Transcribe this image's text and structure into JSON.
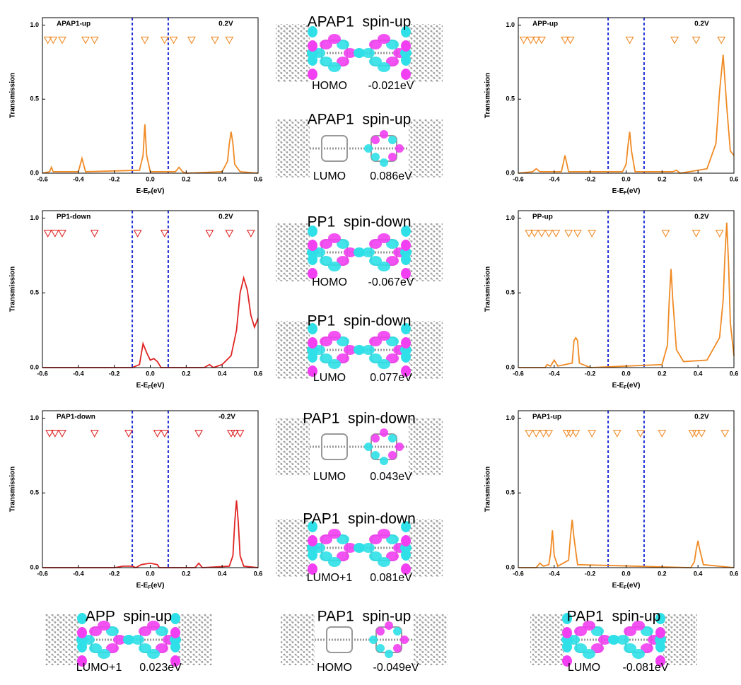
{
  "chart_data": [
    {
      "type": "line",
      "title": "APAP1-up",
      "annotation": "0.2V",
      "xlabel": [
        "E-E",
        "F",
        "(eV)"
      ],
      "ylabel": "Transmission",
      "xlim": [
        -0.6,
        0.6
      ],
      "ylim": [
        0,
        1.05
      ],
      "xticks": [
        -0.6,
        -0.4,
        -0.2,
        {
          "value": 0,
          "label": "0.0"
        },
        0.2,
        0.4,
        0.6
      ],
      "yticks": [
        {
          "value": 0,
          "label": "0.0"
        },
        0.5,
        {
          "value": 1,
          "label": "1.0"
        }
      ],
      "vlines": [
        -0.1,
        0.1
      ],
      "vline_color": "#1f2fd8",
      "series": [
        {
          "color": "#f08a24",
          "x": [
            -0.6,
            -0.56,
            -0.55,
            -0.54,
            -0.4,
            -0.38,
            -0.36,
            -0.06,
            -0.04,
            -0.03,
            -0.02,
            0,
            0.14,
            0.16,
            0.18,
            0.2,
            0.4,
            0.43,
            0.44,
            0.45,
            0.46,
            0.47,
            0.5,
            0.6
          ],
          "values": [
            0,
            0.01,
            0.04,
            0.01,
            0.01,
            0.1,
            0.01,
            0.02,
            0.12,
            0.33,
            0.12,
            0.01,
            0.01,
            0.04,
            0.01,
            0,
            0.01,
            0.08,
            0.2,
            0.28,
            0.2,
            0.06,
            0.01,
            0
          ]
        }
      ],
      "markers": {
        "color": "#f08a24",
        "x": [
          -0.57,
          -0.54,
          -0.49,
          -0.36,
          -0.31,
          -0.03,
          0.08,
          0.13,
          0.23,
          0.36,
          0.44
        ],
        "values": [
          0.9,
          0.9,
          0.9,
          0.9,
          0.9,
          0.9,
          0.9,
          0.9,
          0.9,
          0.9,
          0.9
        ]
      }
    },
    {
      "type": "line",
      "title": "APP-up",
      "annotation": "0.2V",
      "xlabel": [
        "E-E",
        "F",
        "(eV)"
      ],
      "ylabel": "Transmission",
      "xlim": [
        -0.6,
        0.6
      ],
      "ylim": [
        0,
        1.05
      ],
      "xticks": [
        -0.6,
        -0.4,
        -0.2,
        {
          "value": 0,
          "label": "0.0"
        },
        0.2,
        0.4,
        0.6
      ],
      "yticks": [
        {
          "value": 0,
          "label": "0.0"
        },
        0.5,
        {
          "value": 1,
          "label": "1.0"
        }
      ],
      "vlines": [
        -0.1,
        0.1
      ],
      "vline_color": "#1f2fd8",
      "series": [
        {
          "color": "#f08a24",
          "x": [
            -0.6,
            -0.52,
            -0.5,
            -0.48,
            -0.36,
            -0.34,
            -0.32,
            -0.02,
            0,
            0.01,
            0.02,
            0.03,
            0.05,
            0.26,
            0.28,
            0.3,
            0.45,
            0.5,
            0.52,
            0.54,
            0.56,
            0.58,
            0.6
          ],
          "values": [
            0,
            0.01,
            0.03,
            0.01,
            0.01,
            0.12,
            0.01,
            0.01,
            0.06,
            0.18,
            0.28,
            0.15,
            0.01,
            0.01,
            0.02,
            0,
            0.03,
            0.2,
            0.55,
            0.8,
            0.45,
            0.15,
            0.12
          ]
        }
      ],
      "markers": {
        "color": "#f08a24",
        "x": [
          -0.57,
          -0.53,
          -0.5,
          -0.47,
          -0.34,
          -0.31,
          0.02,
          0.27,
          0.39,
          0.53
        ],
        "values": [
          0.9,
          0.9,
          0.9,
          0.9,
          0.9,
          0.9,
          0.9,
          0.9,
          0.9,
          0.9
        ]
      }
    },
    {
      "type": "line",
      "title": "PP1-down",
      "annotation": "0.2V",
      "xlabel": [
        "E-E",
        "F",
        "(eV)"
      ],
      "ylabel": "Transmission",
      "xlim": [
        -0.6,
        0.6
      ],
      "ylim": [
        0,
        1.05
      ],
      "xticks": [
        -0.6,
        -0.4,
        -0.2,
        {
          "value": 0,
          "label": "0.0"
        },
        0.2,
        0.4,
        0.6
      ],
      "yticks": [
        {
          "value": 0,
          "label": "0.0"
        },
        0.5,
        {
          "value": 1,
          "label": "1.0"
        }
      ],
      "vlines": [
        -0.1,
        0.1
      ],
      "vline_color": "#1f2fd8",
      "series": [
        {
          "color": "#e02424",
          "x": [
            -0.6,
            -0.1,
            -0.06,
            -0.04,
            -0.02,
            0,
            0.02,
            0.04,
            0.06,
            0.3,
            0.33,
            0.35,
            0.4,
            0.45,
            0.48,
            0.5,
            0.52,
            0.54,
            0.56,
            0.58,
            0.6
          ],
          "values": [
            0,
            0,
            0.02,
            0.16,
            0.1,
            0.05,
            0.06,
            0.04,
            0,
            0,
            0.02,
            0,
            0.02,
            0.08,
            0.25,
            0.5,
            0.6,
            0.52,
            0.35,
            0.27,
            0.33
          ]
        }
      ],
      "markers": {
        "color": "#e02424",
        "x": [
          -0.57,
          -0.53,
          -0.49,
          -0.31,
          -0.07,
          0.08,
          0.33,
          0.44,
          0.56
        ],
        "values": [
          0.9,
          0.9,
          0.9,
          0.9,
          0.9,
          0.9,
          0.9,
          0.9,
          0.9
        ]
      }
    },
    {
      "type": "line",
      "title": "PP-up",
      "annotation": "0.2V",
      "xlabel": [
        "E-E",
        "F",
        "(eV)"
      ],
      "ylabel": "Transmission",
      "xlim": [
        -0.6,
        0.6
      ],
      "ylim": [
        0,
        1.05
      ],
      "xticks": [
        -0.6,
        -0.4,
        -0.2,
        {
          "value": 0,
          "label": "0.0"
        },
        0.2,
        0.4,
        0.6
      ],
      "yticks": [
        {
          "value": 0,
          "label": "0.0"
        },
        0.5,
        {
          "value": 1,
          "label": "1.0"
        }
      ],
      "vlines": [
        -0.1,
        0.1
      ],
      "vline_color": "#1f2fd8",
      "series": [
        {
          "color": "#f08a24",
          "x": [
            -0.6,
            -0.45,
            -0.44,
            -0.42,
            -0.4,
            -0.38,
            -0.3,
            -0.29,
            -0.28,
            -0.27,
            -0.26,
            -0.2,
            0.2,
            0.23,
            0.24,
            0.25,
            0.26,
            0.28,
            0.32,
            0.45,
            0.52,
            0.54,
            0.55,
            0.56,
            0.57,
            0.58,
            0.6
          ],
          "values": [
            0,
            0,
            0.02,
            0.01,
            0.05,
            0.01,
            0.03,
            0.18,
            0.2,
            0.18,
            0.03,
            0,
            0.02,
            0.15,
            0.45,
            0.66,
            0.45,
            0.12,
            0.04,
            0.05,
            0.2,
            0.45,
            0.75,
            0.97,
            0.7,
            0.3,
            0.08
          ]
        }
      ],
      "markers": {
        "color": "#f08a24",
        "x": [
          -0.54,
          -0.51,
          -0.47,
          -0.43,
          -0.39,
          -0.32,
          -0.27,
          -0.19,
          0.22,
          0.39,
          0.52
        ],
        "values": [
          0.9,
          0.9,
          0.9,
          0.9,
          0.9,
          0.9,
          0.9,
          0.9,
          0.9,
          0.9,
          0.9
        ]
      }
    },
    {
      "type": "line",
      "title": "PAP1-down",
      "annotation": "-0.2V",
      "xlabel": [
        "E-E",
        "F",
        "(eV)"
      ],
      "ylabel": "Transmission",
      "xlim": [
        -0.6,
        0.6
      ],
      "ylim": [
        0,
        1.05
      ],
      "xticks": [
        -0.6,
        -0.4,
        -0.2,
        {
          "value": 0,
          "label": "0.0"
        },
        0.2,
        0.4,
        0.6
      ],
      "yticks": [
        {
          "value": 0,
          "label": "0.0"
        },
        0.5,
        {
          "value": 1,
          "label": "1.0"
        }
      ],
      "vlines": [
        -0.1,
        0.1
      ],
      "vline_color": "#1f2fd8",
      "series": [
        {
          "color": "#e02424",
          "x": [
            -0.6,
            -0.2,
            -0.15,
            -0.1,
            -0.08,
            -0.05,
            0,
            0.04,
            0.05,
            0.25,
            0.27,
            0.29,
            0.44,
            0.46,
            0.47,
            0.48,
            0.49,
            0.5,
            0.52,
            0.6
          ],
          "values": [
            0,
            0,
            0.01,
            0.01,
            0,
            0.02,
            0.03,
            0.02,
            0,
            0,
            0.03,
            0,
            0.01,
            0.08,
            0.3,
            0.45,
            0.3,
            0.08,
            0.01,
            0
          ]
        }
      ],
      "markers": {
        "color": "#e02424",
        "x": [
          -0.56,
          -0.53,
          -0.49,
          -0.31,
          -0.12,
          0.04,
          0.08,
          0.27,
          0.45,
          0.47,
          0.5
        ],
        "values": [
          0.9,
          0.9,
          0.9,
          0.9,
          0.9,
          0.9,
          0.9,
          0.9,
          0.9,
          0.9,
          0.9
        ]
      }
    },
    {
      "type": "line",
      "title": "PAP1-up",
      "annotation": "0.2V",
      "xlabel": [
        "E-E",
        "F",
        "(eV)"
      ],
      "ylabel": "Transmission",
      "xlim": [
        -0.6,
        0.6
      ],
      "ylim": [
        0,
        1.05
      ],
      "xticks": [
        -0.6,
        -0.4,
        -0.2,
        {
          "value": 0,
          "label": "0.0"
        },
        0.2,
        0.4,
        0.6
      ],
      "yticks": [
        {
          "value": 0,
          "label": "0.0"
        },
        0.5,
        {
          "value": 1,
          "label": "1.0"
        }
      ],
      "vlines": [
        -0.1,
        0.1
      ],
      "vline_color": "#1f2fd8",
      "series": [
        {
          "color": "#f08a24",
          "x": [
            -0.6,
            -0.5,
            -0.48,
            -0.46,
            -0.43,
            -0.42,
            -0.41,
            -0.4,
            -0.38,
            -0.32,
            -0.31,
            -0.3,
            -0.29,
            -0.27,
            0.36,
            0.38,
            0.39,
            0.4,
            0.41,
            0.43,
            0.6
          ],
          "values": [
            0,
            0,
            0.03,
            0.01,
            0.02,
            0.1,
            0.25,
            0.08,
            0.01,
            0.05,
            0.2,
            0.32,
            0.2,
            0.02,
            0,
            0.04,
            0.12,
            0.18,
            0.12,
            0.02,
            0
          ]
        }
      ],
      "markers": {
        "color": "#f08a24",
        "x": [
          -0.54,
          -0.5,
          -0.46,
          -0.43,
          -0.33,
          -0.31,
          -0.28,
          -0.19,
          -0.05,
          0.08,
          0.2,
          0.37,
          0.39,
          0.42,
          0.55
        ],
        "values": [
          0.9,
          0.9,
          0.9,
          0.9,
          0.9,
          0.9,
          0.9,
          0.9,
          0.9,
          0.9,
          0.9,
          0.9,
          0.9,
          0.9,
          0.9
        ]
      }
    }
  ],
  "orbitals": [
    {
      "title": "APAP1  spin-up",
      "state": "HOMO",
      "energy": "-0.021eV"
    },
    {
      "title": "APAP1  spin-up",
      "state": "LUMO",
      "energy": "0.086eV"
    },
    {
      "title": "PP1  spin-down",
      "state": "HOMO",
      "energy": "-0.067eV"
    },
    {
      "title": "PP1  spin-down",
      "state": "LUMO",
      "energy": "0.077eV"
    },
    {
      "title": "PAP1  spin-down",
      "state": "LUMO",
      "energy": "0.043eV"
    },
    {
      "title": "PAP1  spin-down",
      "state": "LUMO+1",
      "energy": "0.081eV"
    },
    {
      "title": "APP  spin-up",
      "state": "LUMO+1",
      "energy": "0.023eV"
    },
    {
      "title": "PAP1  spin-up",
      "state": "HOMO",
      "energy": "-0.049eV"
    },
    {
      "title": "PAP1  spin-up",
      "state": "LUMO",
      "energy": "-0.081eV"
    }
  ]
}
